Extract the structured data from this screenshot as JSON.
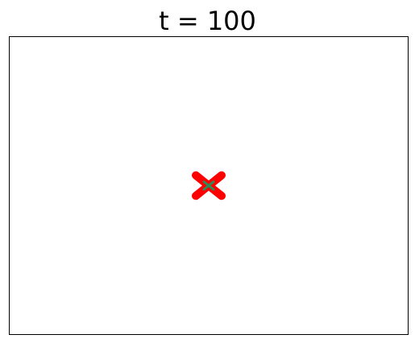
{
  "chart_data": {
    "type": "scatter",
    "title": "t = 100",
    "xlabel": "",
    "ylabel": "",
    "xlim": [
      0,
      1
    ],
    "ylim": [
      0,
      1
    ],
    "grid": false,
    "ticks": false,
    "series": [
      {
        "marker": "x",
        "color": "#ff0000",
        "points": [
          {
            "x": 0.5,
            "y": 0.5
          }
        ]
      },
      {
        "marker": "x",
        "color": "#2e8b57",
        "points": [
          {
            "x": 0.5,
            "y": 0.5
          }
        ]
      }
    ]
  }
}
